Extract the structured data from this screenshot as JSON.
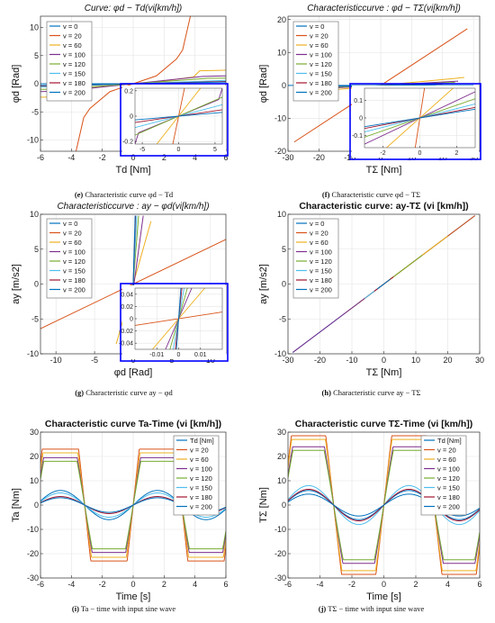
{
  "colors": {
    "v0": "#0072BD",
    "v20": "#D95319",
    "v60": "#EDB120",
    "v100": "#7E2F8E",
    "v120": "#77AC30",
    "v150": "#4DBEEE",
    "v180": "#A2142F",
    "v200": "#0072BD",
    "inset_border": "#0000ff"
  },
  "panels": {
    "e": {
      "caption_bold": "(e)",
      "caption_text": " Characteristic curve  φd − Td"
    },
    "f": {
      "caption_bold": "(f)",
      "caption_text": " Characteristic curve  φd − TΣ"
    },
    "g": {
      "caption_bold": "(g)",
      "caption_text": " Characteristic curve  ay − φd"
    },
    "h": {
      "caption_bold": "(h)",
      "caption_text": " Characteristic curve  ay − TΣ"
    },
    "i": {
      "caption_bold": "(i)",
      "caption_text": " Ta − time  with input sine wave"
    },
    "j": {
      "caption_bold": "(j)",
      "caption_text": " TΣ − time  with input sine wave"
    }
  },
  "chart_data": [
    {
      "id": "e",
      "type": "line",
      "title": "Curve:  φd − Td(vi[km/h])",
      "xlabel": "Td [Nm]",
      "ylabel": "φd [Rad]",
      "xlim": [
        -6,
        6
      ],
      "ylim": [
        -12,
        12
      ],
      "xticks": [
        -6,
        -4,
        -2,
        0,
        2,
        4,
        6
      ],
      "yticks": [
        -10,
        -5,
        0,
        5,
        10
      ],
      "grid": true,
      "legend_position": "top-left",
      "series": [
        {
          "name": "v = 0",
          "color_key": "v0",
          "x": [
            -6,
            6
          ],
          "y": [
            0,
            0
          ]
        },
        {
          "name": "v = 20",
          "color_key": "v20",
          "x": [
            -3.7,
            -3.2,
            -2.8,
            -1.5,
            0,
            1.5,
            2.8,
            3.2,
            3.7
          ],
          "y": [
            -12,
            -6,
            -4.4,
            -1.4,
            0,
            1.4,
            4.4,
            6,
            12
          ]
        },
        {
          "name": "v = 60",
          "color_key": "v60",
          "x": [
            -6,
            -4.3,
            -3.9,
            -2,
            0,
            2,
            3.9,
            4.3,
            6
          ],
          "y": [
            -2.4,
            -2.3,
            -1.2,
            -0.5,
            0,
            0.5,
            1.2,
            2.3,
            2.4
          ]
        },
        {
          "name": "v = 100",
          "color_key": "v100",
          "x": [
            -6,
            -4.5,
            0,
            4.5,
            6
          ],
          "y": [
            -1.4,
            -1.3,
            0,
            1.3,
            1.4
          ]
        },
        {
          "name": "v = 120",
          "color_key": "v120",
          "x": [
            -6,
            -4.8,
            0,
            4.8,
            6
          ],
          "y": [
            -1.0,
            -0.95,
            0,
            0.95,
            1.0
          ]
        },
        {
          "name": "v = 150",
          "color_key": "v150",
          "x": [
            -6,
            0,
            6
          ],
          "y": [
            -0.6,
            0,
            0.6
          ]
        },
        {
          "name": "v = 180",
          "color_key": "v180",
          "x": [
            -6,
            0,
            6
          ],
          "y": [
            -0.4,
            0,
            0.4
          ]
        },
        {
          "name": "v = 200",
          "color_key": "v200",
          "x": [
            -6,
            0,
            6
          ],
          "y": [
            -0.3,
            0,
            0.3
          ]
        }
      ],
      "inset": {
        "xlim": [
          -6,
          6
        ],
        "ylim": [
          -0.22,
          0.22
        ],
        "xticks": [
          -5,
          0,
          5
        ],
        "yticks": [
          -0.2,
          0,
          0.2
        ],
        "series": [
          {
            "color_key": "v20",
            "x": [
              -0.8,
              0.8
            ],
            "y": [
              -0.22,
              0.22
            ]
          },
          {
            "color_key": "v60",
            "x": [
              -3,
              3
            ],
            "y": [
              -0.22,
              0.22
            ]
          },
          {
            "color_key": "v100",
            "x": [
              -6,
              -5.5,
              5.5,
              6
            ],
            "y": [
              -0.22,
              -0.13,
              0.13,
              0.22
            ]
          },
          {
            "color_key": "v120",
            "x": [
              -6,
              -4,
              4,
              6
            ],
            "y": [
              -0.15,
              -0.1,
              0.1,
              0.15
            ]
          },
          {
            "color_key": "v150",
            "x": [
              -6,
              6
            ],
            "y": [
              -0.09,
              0.09
            ]
          },
          {
            "color_key": "v180",
            "x": [
              -6,
              6
            ],
            "y": [
              -0.05,
              0.05
            ]
          },
          {
            "color_key": "v200",
            "x": [
              -6,
              6
            ],
            "y": [
              -0.03,
              0.03
            ]
          }
        ]
      }
    },
    {
      "id": "f",
      "type": "line",
      "title": "Characteristiccurve : φd − TΣ(vi[km/h])",
      "xlabel": "TΣ [Nm]",
      "ylabel": "φd [Rad]",
      "xlim": [
        -30,
        32
      ],
      "ylim": [
        -20,
        21
      ],
      "xticks": [
        -30,
        -20,
        -10,
        0,
        10,
        20,
        30
      ],
      "yticks": [
        -20,
        -10,
        0,
        10,
        20
      ],
      "grid": true,
      "legend_position": "top-left",
      "series": [
        {
          "name": "v = 0",
          "color_key": "v0",
          "x": [
            -30,
            30
          ],
          "y": [
            0,
            0
          ]
        },
        {
          "name": "v = 20",
          "color_key": "v20",
          "x": [
            -28,
            28
          ],
          "y": [
            -17.2,
            17.2
          ]
        },
        {
          "name": "v = 60",
          "color_key": "v60",
          "x": [
            -27,
            27
          ],
          "y": [
            -2.4,
            2.4
          ]
        },
        {
          "name": "v = 100",
          "color_key": "v100",
          "x": [
            -25,
            25
          ],
          "y": [
            -1.3,
            1.3
          ]
        },
        {
          "name": "v = 120",
          "color_key": "v120",
          "x": [
            -24,
            24
          ],
          "y": [
            -0.9,
            0.9
          ]
        },
        {
          "name": "v = 150",
          "color_key": "v150",
          "x": [
            -22,
            22
          ],
          "y": [
            -0.6,
            0.6
          ]
        },
        {
          "name": "v = 180",
          "color_key": "v180",
          "x": [
            -20,
            20
          ],
          "y": [
            -0.4,
            0.4
          ]
        },
        {
          "name": "v = 200",
          "color_key": "v200",
          "x": [
            -18,
            18
          ],
          "y": [
            -0.3,
            0.3
          ]
        }
      ],
      "inset": {
        "xlim": [
          -3,
          3
        ],
        "ylim": [
          -0.17,
          0.17
        ],
        "xticks": [
          -2,
          0,
          2
        ],
        "yticks": [
          -0.1,
          0,
          0.1
        ],
        "series": [
          {
            "color_key": "v20",
            "x": [
              -0.25,
              0.25
            ],
            "y": [
              -0.17,
              0.17
            ]
          },
          {
            "color_key": "v60",
            "x": [
              -1.8,
              1.8
            ],
            "y": [
              -0.17,
              0.17
            ]
          },
          {
            "color_key": "v100",
            "x": [
              -3,
              3
            ],
            "y": [
              -0.15,
              0.15
            ]
          },
          {
            "color_key": "v120",
            "x": [
              -3,
              3
            ],
            "y": [
              -0.11,
              0.11
            ]
          },
          {
            "color_key": "v150",
            "x": [
              -3,
              3
            ],
            "y": [
              -0.08,
              0.08
            ]
          },
          {
            "color_key": "v180",
            "x": [
              -3,
              3
            ],
            "y": [
              -0.06,
              0.06
            ]
          },
          {
            "color_key": "v200",
            "x": [
              -3,
              3
            ],
            "y": [
              -0.05,
              0.05
            ]
          }
        ]
      }
    },
    {
      "id": "g",
      "type": "line",
      "title": "Characteristiccurve : ay − φd(vi[km/h])",
      "xlabel": "φd [Rad]",
      "ylabel": "ay [m/s2]",
      "xlim": [
        -12,
        12
      ],
      "ylim": [
        -10,
        10
      ],
      "xticks": [
        -10,
        -5,
        0,
        5,
        10
      ],
      "yticks": [
        -10,
        -5,
        0,
        5,
        10
      ],
      "grid": true,
      "legend_position": "top-left",
      "series": [
        {
          "name": "v = 0",
          "color_key": "v0",
          "x": [
            0,
            0
          ],
          "y": [
            0,
            0
          ]
        },
        {
          "name": "v = 20",
          "color_key": "v20",
          "x": [
            -12,
            12
          ],
          "y": [
            -6.4,
            6.4
          ]
        },
        {
          "name": "v = 60",
          "color_key": "v60",
          "x": [
            -2.2,
            2.3
          ],
          "y": [
            -8.6,
            9.0
          ]
        },
        {
          "name": "v = 100",
          "color_key": "v100",
          "x": [
            -1.1,
            1.3
          ],
          "y": [
            -9.8,
            9.8
          ]
        },
        {
          "name": "v = 120",
          "color_key": "v120",
          "x": [
            -0.7,
            0.7
          ],
          "y": [
            -9.8,
            9.8
          ]
        },
        {
          "name": "v = 150",
          "color_key": "v150",
          "x": [
            -0.45,
            0.45
          ],
          "y": [
            -9.8,
            9.8
          ]
        },
        {
          "name": "v = 180",
          "color_key": "v180",
          "x": [
            -0.3,
            0.3
          ],
          "y": [
            -9.8,
            9.8
          ]
        },
        {
          "name": "v = 200",
          "color_key": "v200",
          "x": [
            -0.25,
            0.25
          ],
          "y": [
            -9.8,
            9.8
          ]
        }
      ],
      "inset": {
        "xlim": [
          -0.02,
          0.02
        ],
        "ylim": [
          -0.05,
          0.05
        ],
        "xticks": [
          -0.01,
          0,
          0.01
        ],
        "yticks": [
          -0.04,
          -0.02,
          0,
          0.02,
          0.04
        ],
        "series": [
          {
            "color_key": "v20",
            "x": [
              -0.02,
              0.02
            ],
            "y": [
              -0.011,
              0.011
            ]
          },
          {
            "color_key": "v60",
            "x": [
              -0.012,
              0.012
            ],
            "y": [
              -0.05,
              0.05
            ]
          },
          {
            "color_key": "v100",
            "x": [
              -0.006,
              0.006
            ],
            "y": [
              -0.05,
              0.05
            ]
          },
          {
            "color_key": "v120",
            "x": [
              -0.004,
              0.004
            ],
            "y": [
              -0.05,
              0.05
            ]
          },
          {
            "color_key": "v150",
            "x": [
              -0.0025,
              0.0025
            ],
            "y": [
              -0.05,
              0.05
            ]
          },
          {
            "color_key": "v180",
            "x": [
              -0.0015,
              0.0015
            ],
            "y": [
              -0.05,
              0.05
            ]
          },
          {
            "color_key": "v200",
            "x": [
              -0.001,
              0.001
            ],
            "y": [
              -0.05,
              0.05
            ]
          }
        ]
      }
    },
    {
      "id": "h",
      "type": "line",
      "title": "Characteristic curve: ay-TΣ (vi [km/h])",
      "xlabel": "TΣ [Nm]",
      "ylabel": "ay [m/s2]",
      "xlim": [
        -30,
        30
      ],
      "ylim": [
        -10,
        10
      ],
      "xticks": [
        -30,
        -20,
        -10,
        0,
        10,
        20,
        30
      ],
      "yticks": [
        -10,
        -5,
        0,
        5,
        10
      ],
      "grid": true,
      "legend_position": "top-left",
      "series": [
        {
          "name": "v = 0",
          "color_key": "v0",
          "x": [
            -28.5,
            28.5
          ],
          "y": [
            -9.8,
            9.8
          ]
        },
        {
          "name": "v = 20",
          "color_key": "v20",
          "x": [
            -8,
            28.5
          ],
          "y": [
            -2.75,
            9.8
          ]
        },
        {
          "name": "v = 60",
          "color_key": "v60",
          "x": [
            -12,
            20
          ],
          "y": [
            -4.13,
            6.88
          ]
        },
        {
          "name": "v = 100",
          "color_key": "v100",
          "x": [
            -28.5,
            0
          ],
          "y": [
            -9.8,
            0
          ]
        },
        {
          "name": "v = 120",
          "color_key": "v120",
          "x": [
            2,
            12
          ],
          "y": [
            0.69,
            4.13
          ]
        },
        {
          "name": "v = 150",
          "color_key": "v150",
          "x": [
            -6,
            0
          ],
          "y": [
            -2.06,
            0
          ]
        },
        {
          "name": "v = 180",
          "color_key": "v180",
          "x": [
            -3,
            3
          ],
          "y": [
            -1.03,
            1.03
          ]
        },
        {
          "name": "v = 200",
          "color_key": "v200",
          "x": [
            -2,
            2
          ],
          "y": [
            -0.69,
            0.69
          ]
        }
      ]
    },
    {
      "id": "i",
      "type": "line",
      "title": "Characteristic curve Ta-Time (vi [km/h])",
      "xlabel": "Time [s]",
      "ylabel": "Ta [Nm]",
      "xlim": [
        -6,
        6
      ],
      "ylim": [
        -30,
        30
      ],
      "xticks": [
        -6,
        -4,
        -2,
        0,
        2,
        4,
        6
      ],
      "yticks": [
        -30,
        -20,
        -10,
        0,
        10,
        20,
        30
      ],
      "grid": true,
      "legend_position": "top-right",
      "legend_first_label": "Td [Nm]",
      "series": [
        {
          "name": "Td [Nm]",
          "color_key": "v0",
          "amplitude": 6,
          "sat": 6,
          "period": 6.283
        },
        {
          "name": "v = 20",
          "color_key": "v20",
          "amplitude": 60,
          "sat": 23,
          "period": 6.283
        },
        {
          "name": "v = 60",
          "color_key": "v60",
          "amplitude": 50,
          "sat": 21.5,
          "period": 6.283
        },
        {
          "name": "v = 100",
          "color_key": "v100",
          "amplitude": 42,
          "sat": 19.5,
          "period": 6.283
        },
        {
          "name": "v = 120",
          "color_key": "v120",
          "amplitude": 38,
          "sat": 18,
          "period": 6.283
        },
        {
          "name": "v = 150",
          "color_key": "v150",
          "amplitude": 5,
          "sat": 5,
          "period": 6.283
        },
        {
          "name": "v = 180",
          "color_key": "v180",
          "amplitude": 3.5,
          "sat": 3.5,
          "period": 6.283
        },
        {
          "name": "v = 200",
          "color_key": "v200",
          "amplitude": 3,
          "sat": 3,
          "period": 6.283
        }
      ]
    },
    {
      "id": "j",
      "type": "line",
      "title": "Characteristic curve TΣ-Time (vi [km/h])",
      "xlabel": "Time [s]",
      "ylabel": "TΣ [Nm]",
      "xlim": [
        -6,
        6
      ],
      "ylim": [
        -30,
        30
      ],
      "xticks": [
        -6,
        -4,
        -2,
        0,
        2,
        4,
        6
      ],
      "yticks": [
        -30,
        -20,
        -10,
        0,
        10,
        20,
        30
      ],
      "grid": true,
      "legend_position": "top-right",
      "legend_first_label": "Td [Nm]",
      "series": [
        {
          "name": "Td [Nm]",
          "color_key": "v0",
          "amplitude": 6,
          "sat": 6,
          "period": 6.283
        },
        {
          "name": "v = 20",
          "color_key": "v20",
          "amplitude": 60,
          "sat": 28.5,
          "period": 6.283
        },
        {
          "name": "v = 60",
          "color_key": "v60",
          "amplitude": 55,
          "sat": 27,
          "period": 6.283
        },
        {
          "name": "v = 100",
          "color_key": "v100",
          "amplitude": 44,
          "sat": 24,
          "period": 6.283
        },
        {
          "name": "v = 120",
          "color_key": "v120",
          "amplitude": 40,
          "sat": 22.5,
          "period": 6.283
        },
        {
          "name": "v = 150",
          "color_key": "v150",
          "amplitude": 8,
          "sat": 8,
          "period": 6.283
        },
        {
          "name": "v = 180",
          "color_key": "v180",
          "amplitude": 6.5,
          "sat": 6.5,
          "period": 6.283
        },
        {
          "name": "v = 200",
          "color_key": "v200",
          "amplitude": 4.5,
          "sat": 4.5,
          "period": 6.283
        }
      ]
    }
  ]
}
